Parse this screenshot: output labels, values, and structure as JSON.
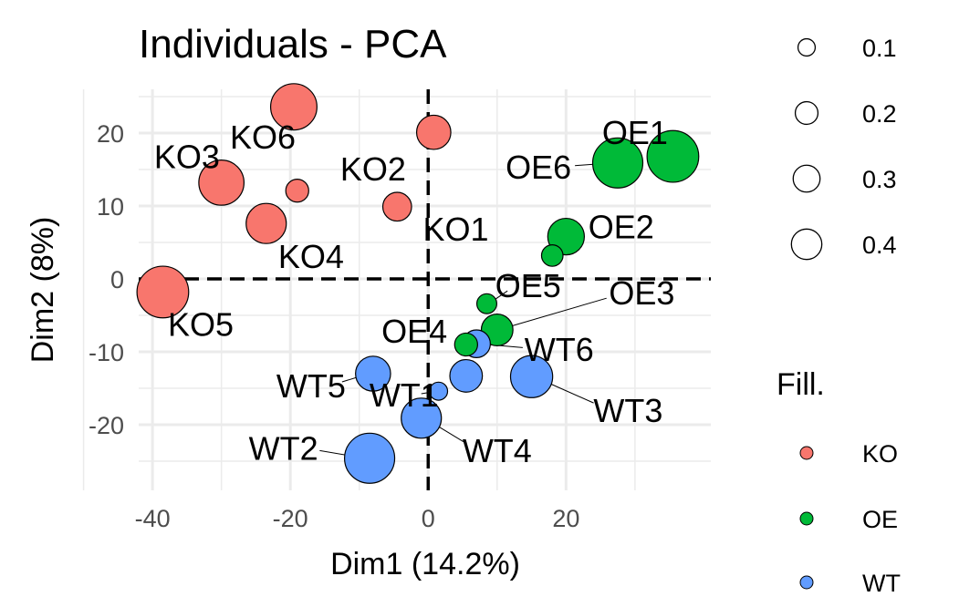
{
  "chart_data": {
    "type": "scatter",
    "title": "Individuals - PCA",
    "xlabel": "Dim1 (14.2%)",
    "ylabel": "Dim2 (8%)",
    "xlim": [
      -42,
      41
    ],
    "ylim": [
      -29,
      26
    ],
    "x_ticks": [
      -40,
      -20,
      0,
      20
    ],
    "y_ticks": [
      -20,
      -10,
      0,
      10,
      20
    ],
    "reference_lines": {
      "x": 0,
      "y": 0,
      "style": "dashed"
    },
    "grid": true,
    "groups": [
      {
        "name": "KO",
        "color": "#F8766D"
      },
      {
        "name": "OE",
        "color": "#00BA38"
      },
      {
        "name": "WT",
        "color": "#619CFF"
      }
    ],
    "points": [
      {
        "label": "KO6",
        "group": "KO",
        "x": -19.5,
        "y": 23.6,
        "size": 0.35,
        "label_x": -24,
        "label_y": 19.5
      },
      {
        "label": "KO3",
        "group": "KO",
        "x": -30.0,
        "y": 13.2,
        "size": 0.33,
        "label_x": -35,
        "label_y": 16.8
      },
      {
        "label": "",
        "group": "KO",
        "x": -19.0,
        "y": 12.1,
        "size": 0.06
      },
      {
        "label": "KO2",
        "group": "KO",
        "x": 0.8,
        "y": 20.1,
        "size": 0.17,
        "label_x": -8,
        "label_y": 15.1
      },
      {
        "label": "KO1",
        "group": "KO",
        "x": -4.5,
        "y": 9.9,
        "size": 0.11,
        "label_x": 4,
        "label_y": 6.9
      },
      {
        "label": "KO4",
        "group": "KO",
        "x": -23.5,
        "y": 7.6,
        "size": 0.25,
        "label_x": -17,
        "label_y": 3.1
      },
      {
        "label": "KO5",
        "group": "KO",
        "x": -38.5,
        "y": -1.8,
        "size": 0.45,
        "label_x": -33,
        "label_y": -6.2
      },
      {
        "label": "OE1",
        "group": "OE",
        "x": 35.5,
        "y": 16.8,
        "size": 0.45,
        "label_x": 30,
        "label_y": 20.1
      },
      {
        "label": "OE6",
        "group": "OE",
        "x": 27.5,
        "y": 15.9,
        "size": 0.42,
        "label_x": 16,
        "label_y": 15.4,
        "leader": true
      },
      {
        "label": "OE2",
        "group": "OE",
        "x": 20.0,
        "y": 5.8,
        "size": 0.2,
        "label_x": 28,
        "label_y": 7.2
      },
      {
        "label": "",
        "group": "OE",
        "x": 18.0,
        "y": 3.2,
        "size": 0.05
      },
      {
        "label": "OE5",
        "group": "OE",
        "x": 8.5,
        "y": -3.4,
        "size": 0.04,
        "label_x": 14.5,
        "label_y": -0.9,
        "leader": true
      },
      {
        "label": "OE3",
        "group": "OE",
        "x": 10.0,
        "y": -7.0,
        "size": 0.14,
        "label_x": 31,
        "label_y": -1.9,
        "leader": true
      },
      {
        "label": "OE4",
        "group": "OE",
        "x": 5.5,
        "y": -9.0,
        "size": 0.06,
        "label_x": -2,
        "label_y": -7.1
      },
      {
        "label": "WT6",
        "group": "WT",
        "x": 7.0,
        "y": -8.9,
        "size": 0.1,
        "label_x": 19,
        "label_y": -9.6,
        "leader": true
      },
      {
        "label": "WT5",
        "group": "WT",
        "x": -8.0,
        "y": -13.0,
        "size": 0.18,
        "label_x": -17,
        "label_y": -14.6,
        "leader": true
      },
      {
        "label": "WT1",
        "group": "WT",
        "x": 1.5,
        "y": -15.4,
        "size": 0.03,
        "label_x": -3.5,
        "label_y": -15.9,
        "leader": true
      },
      {
        "label": "",
        "group": "WT",
        "x": 5.5,
        "y": -13.3,
        "size": 0.15
      },
      {
        "label": "WT3",
        "group": "WT",
        "x": 15.0,
        "y": -13.4,
        "size": 0.28,
        "label_x": 29,
        "label_y": -18.0,
        "leader": true
      },
      {
        "label": "WT4",
        "group": "WT",
        "x": -1.0,
        "y": -19.1,
        "size": 0.25,
        "label_x": 10,
        "label_y": -23.5,
        "leader": true
      },
      {
        "label": "WT2",
        "group": "WT",
        "x": -8.5,
        "y": -24.6,
        "size": 0.42,
        "label_x": -21,
        "label_y": -23.2,
        "leader": true
      }
    ],
    "legends": {
      "size": {
        "title": "",
        "entries": [
          {
            "label": "0.1",
            "value": 0.1
          },
          {
            "label": "0.2",
            "value": 0.2
          },
          {
            "label": "0.3",
            "value": 0.3
          },
          {
            "label": "0.4",
            "value": 0.4
          }
        ]
      },
      "fill": {
        "title": "Fill.",
        "entries": [
          "KO",
          "OE",
          "WT"
        ]
      }
    }
  }
}
